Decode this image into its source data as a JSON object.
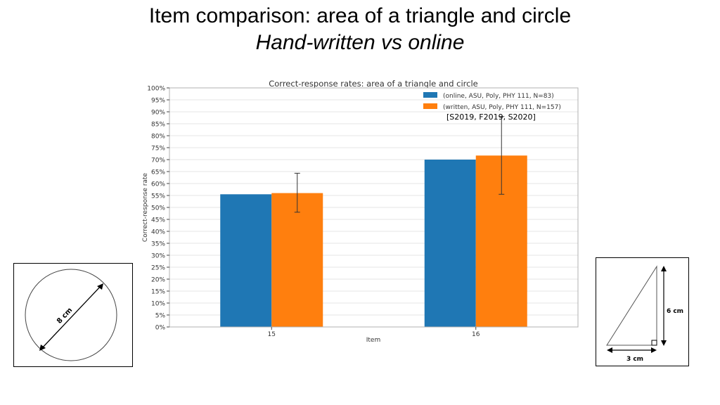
{
  "slide": {
    "title": "Item comparison: area of a triangle and circle",
    "subtitle": "Hand-written vs online"
  },
  "chart_data": {
    "type": "bar",
    "title": "Correct-response rates: area of a triangle and circle",
    "xlabel": "Item",
    "ylabel": "Correct-response rate",
    "categories": [
      "15",
      "16"
    ],
    "ylim": [
      0,
      100
    ],
    "yticks": [
      "0%",
      "5%",
      "10%",
      "15%",
      "20%",
      "25%",
      "30%",
      "35%",
      "40%",
      "45%",
      "50%",
      "55%",
      "60%",
      "65%",
      "70%",
      "75%",
      "80%",
      "85%",
      "90%",
      "95%",
      "100%"
    ],
    "grid": true,
    "legend_position": "top-right",
    "series": [
      {
        "name": "(online, ASU, Poly, PHY 111, N=83)",
        "color": "#1f77b4",
        "values": [
          55.5,
          70
        ],
        "error_low": [
          null,
          null
        ],
        "error_high": [
          null,
          null
        ]
      },
      {
        "name": "(written, ASU, Poly, PHY 111, N=157)",
        "color": "#ff7f0e",
        "values": [
          56,
          71.7
        ],
        "error_low": [
          48,
          55.5
        ],
        "error_high": [
          64.3,
          88
        ]
      }
    ],
    "annotation": "[S2019, F2019, S2020]"
  },
  "figures": {
    "circle": {
      "diameter_label": "8 cm"
    },
    "triangle": {
      "height_label": "6 cm",
      "base_label": "3 cm"
    }
  }
}
